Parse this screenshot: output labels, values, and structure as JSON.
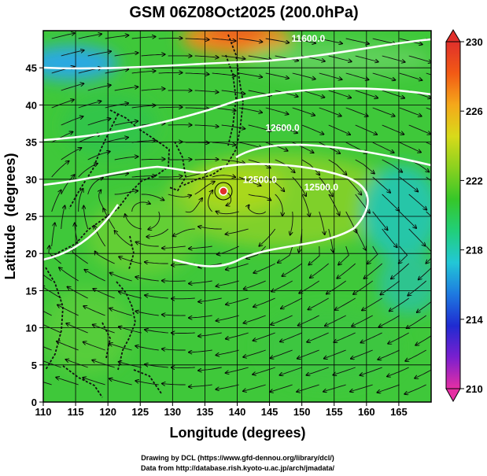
{
  "chart_data": {
    "type": "heatmap",
    "title": "GSM 06Z08Oct2025 (200.0hPa)",
    "xlabel": "Longitude (degrees)",
    "ylabel": "Latitude  (degrees)",
    "x_ticks": [
      110,
      115,
      120,
      125,
      130,
      135,
      140,
      145,
      150,
      155,
      160,
      165
    ],
    "y_ticks": [
      0,
      5,
      10,
      15,
      20,
      25,
      30,
      35,
      40,
      45
    ],
    "xlim": [
      110,
      170
    ],
    "ylim": [
      0,
      50
    ],
    "grid": true,
    "colorbar": {
      "ticks": [
        210,
        214,
        218,
        222,
        226,
        230
      ],
      "range": [
        210,
        230
      ],
      "colors": [
        "#e62fa3",
        "#7a1fcf",
        "#1f2bd1",
        "#1e7ae0",
        "#22c7d6",
        "#21cf7a",
        "#36c729",
        "#8ad11f",
        "#d8da1a",
        "#f5a81a",
        "#f25a15",
        "#e0302b"
      ]
    },
    "contour_labels": [
      {
        "text": "12500.0",
        "lon": 143.5,
        "lat": 29.5
      },
      {
        "text": "12500.0",
        "lon": 153.0,
        "lat": 28.5
      },
      {
        "text": "12600.0",
        "lon": 147.0,
        "lat": 36.5
      },
      {
        "text": "11600.0",
        "lon": 151.0,
        "lat": 48.5
      }
    ]
  },
  "footer": {
    "line1": "Drawing by DCL (https://www.gfd-dennou.org/library/dcl/)",
    "line2": "Data from http://database.rish.kyoto-u.ac.jp/arch/jmadata/"
  }
}
